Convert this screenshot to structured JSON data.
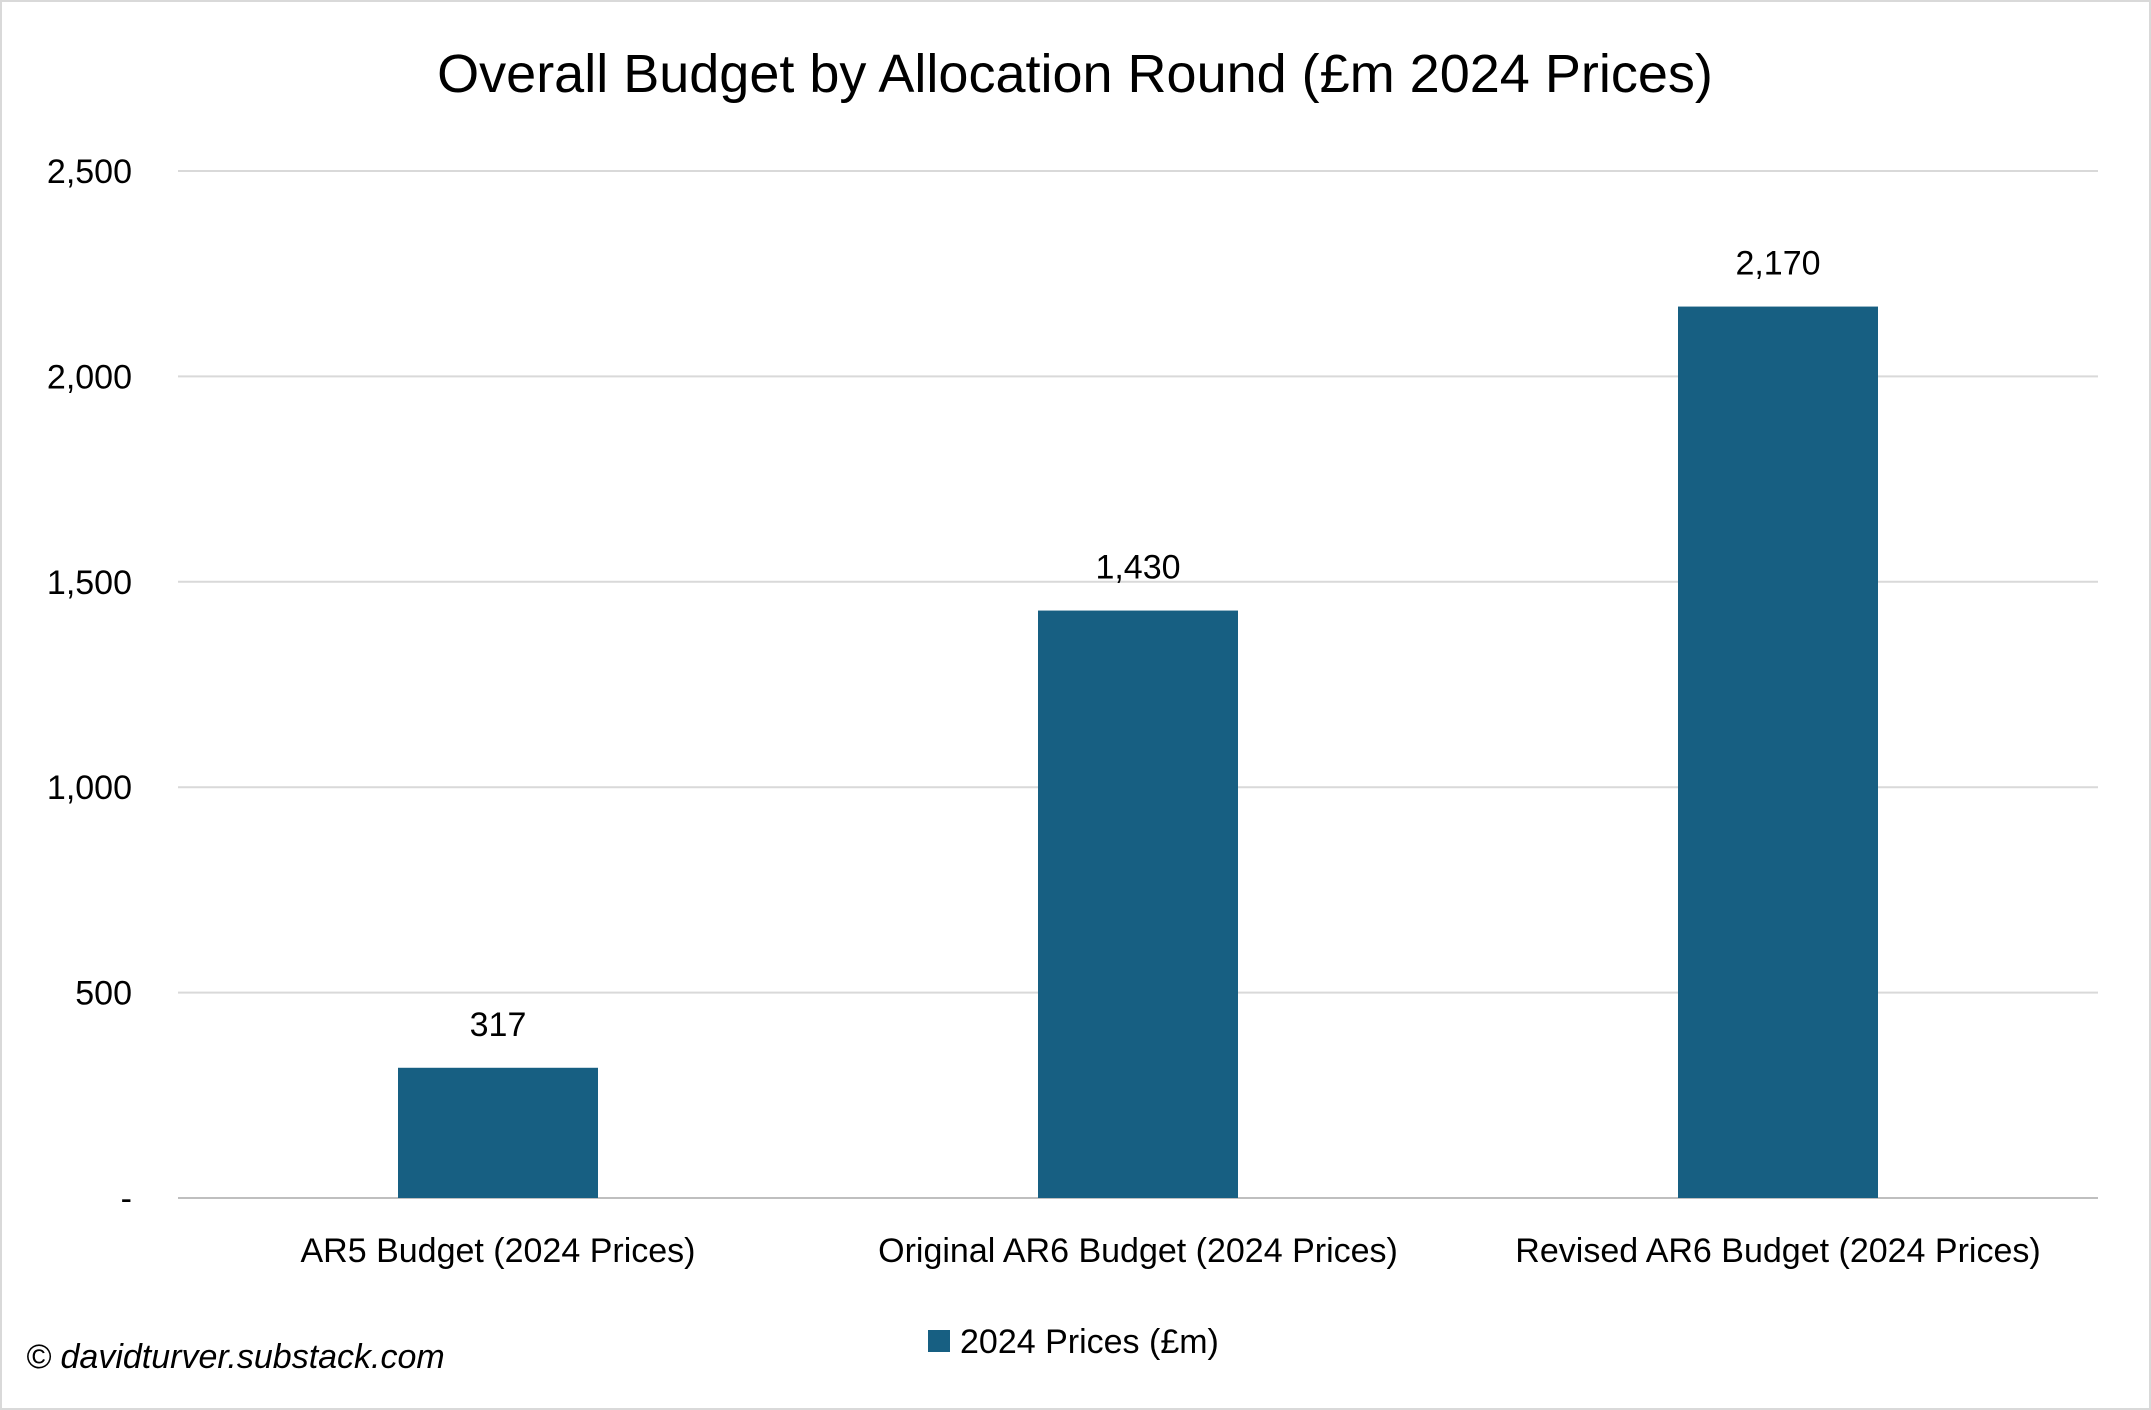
{
  "chart_data": {
    "type": "bar",
    "title": "Overall Budget by Allocation Round (£m 2024 Prices)",
    "categories": [
      "AR5 Budget (2024 Prices)",
      "Original AR6 Budget (2024 Prices)",
      "Revised AR6 Budget (2024 Prices)"
    ],
    "series": [
      {
        "name": "2024 Prices (£m)",
        "values": [
          317,
          1430,
          2170
        ],
        "color": "#175f82"
      }
    ],
    "data_labels": [
      "317",
      "1,430",
      "2,170"
    ],
    "yticks": [
      {
        "value": 0,
        "label": "-"
      },
      {
        "value": 500,
        "label": "500"
      },
      {
        "value": 1000,
        "label": "1,000"
      },
      {
        "value": 1500,
        "label": "1,500"
      },
      {
        "value": 2000,
        "label": "2,000"
      },
      {
        "value": 2500,
        "label": "2,500"
      }
    ],
    "ylim": [
      0,
      2500
    ],
    "grid": true,
    "legend_position": "bottom",
    "xlabel": "",
    "ylabel": ""
  },
  "credit": "© davidturver.substack.com"
}
